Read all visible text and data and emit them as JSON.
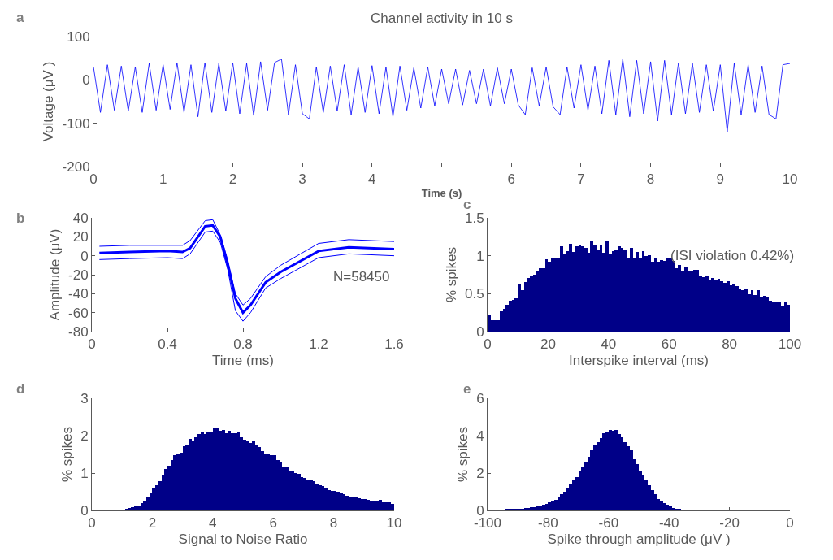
{
  "chart_data": [
    {
      "type": "line",
      "title": "Channel activity in 10 s",
      "xlabel": "Time (s)",
      "ylabel": "Voltage (μV )",
      "annotations": [
        "a"
      ],
      "color": "#0000ff",
      "x": [
        0,
        0.1,
        0.2,
        0.3,
        0.4,
        0.5,
        0.6,
        0.7,
        0.8,
        0.9,
        1,
        1.1,
        1.2,
        1.3,
        1.4,
        1.5,
        1.6,
        1.7,
        1.8,
        1.9,
        2,
        2.1,
        2.2,
        2.3,
        2.4,
        2.5,
        2.6,
        2.7,
        2.8,
        2.9,
        3,
        3.1,
        3.2,
        3.3,
        3.4,
        3.5,
        3.6,
        3.7,
        3.8,
        3.9,
        4,
        4.1,
        4.2,
        4.3,
        4.4,
        4.5,
        4.6,
        4.7,
        4.8,
        4.9,
        5,
        5.1,
        5.2,
        5.3,
        5.4,
        5.5,
        5.6,
        5.7,
        5.8,
        5.9,
        6,
        6.1,
        6.2,
        6.3,
        6.4,
        6.5,
        6.6,
        6.7,
        6.8,
        6.9,
        7,
        7.1,
        7.2,
        7.3,
        7.4,
        7.5,
        7.6,
        7.7,
        7.8,
        7.9,
        8,
        8.1,
        8.2,
        8.3,
        8.4,
        8.5,
        8.6,
        8.7,
        8.8,
        8.9,
        9,
        9.1,
        9.2,
        9.3,
        9.4,
        9.5,
        9.6,
        9.7,
        9.8,
        9.9,
        10
      ],
      "values": [
        30,
        -75,
        35,
        -70,
        32,
        -72,
        30,
        -75,
        38,
        -70,
        35,
        -68,
        40,
        -75,
        35,
        -85,
        40,
        -75,
        38,
        -72,
        40,
        -78,
        38,
        -82,
        42,
        -70,
        40,
        48,
        -80,
        35,
        -78,
        -90,
        30,
        -75,
        32,
        -72,
        35,
        -80,
        30,
        -75,
        33,
        -78,
        30,
        -85,
        32,
        -70,
        28,
        -65,
        30,
        -60,
        25,
        -55,
        25,
        -58,
        22,
        -55,
        25,
        -60,
        28,
        -55,
        25,
        -58,
        -80,
        28,
        -60,
        30,
        -62,
        -80,
        30,
        -65,
        35,
        -70,
        32,
        -78,
        45,
        -80,
        48,
        -85,
        45,
        -78,
        42,
        -95,
        45,
        -80,
        40,
        -78,
        38,
        -75,
        35,
        -72,
        35,
        -120,
        38,
        -80,
        35,
        -75,
        32,
        -80,
        -90,
        35,
        38
      ],
      "xlim": [
        0,
        10
      ],
      "xticks": [
        0,
        1,
        2,
        3,
        4,
        {
          "value": 5,
          "label": null
        },
        6,
        7,
        8,
        9,
        10
      ],
      "ylim": [
        -200,
        100
      ],
      "yticks": [
        -200,
        -100,
        0,
        100
      ]
    },
    {
      "type": "line",
      "xlabel": "Time (ms)",
      "ylabel": "Amplitude (μV)",
      "annotations": [
        "b",
        "N=58450"
      ],
      "x": [
        0.04,
        0.2,
        0.4,
        0.48,
        0.52,
        0.6,
        0.64,
        0.68,
        0.72,
        0.76,
        0.8,
        0.84,
        0.92,
        1.0,
        1.2,
        1.36,
        1.6
      ],
      "series": [
        {
          "color": "#0000ff",
          "values": [
            3,
            4,
            5,
            4,
            8,
            31,
            32,
            20,
            -10,
            -45,
            -60,
            -52,
            -28,
            -17,
            5,
            9,
            7
          ]
        },
        {
          "color": "#0000ff",
          "values": [
            10,
            11,
            11,
            11,
            16,
            37,
            38,
            22,
            -5,
            -40,
            -52,
            -45,
            -22,
            -10,
            13,
            17,
            15
          ]
        },
        {
          "color": "#0000ff",
          "values": [
            -4,
            -3,
            -2,
            -3,
            2,
            25,
            26,
            14,
            -15,
            -58,
            -69,
            -60,
            -34,
            -24,
            -2,
            2,
            0
          ]
        }
      ],
      "xlim": [
        0,
        1.6
      ],
      "xticks": [
        0,
        0.4,
        0.8,
        1.2,
        1.6
      ],
      "ylim": [
        -80,
        40
      ],
      "yticks": [
        -80,
        -60,
        -40,
        -20,
        0,
        20,
        40
      ]
    },
    {
      "type": "histogram",
      "xlabel": "Interspike interval (ms)",
      "ylabel": "% spikes",
      "annotations": [
        "c",
        "(ISI violation 0.42%)"
      ],
      "color": "#000088",
      "bins": [
        0,
        1,
        2,
        3,
        4,
        5,
        6,
        7,
        8,
        9,
        10,
        11,
        12,
        13,
        14,
        15,
        16,
        17,
        18,
        19,
        20,
        21,
        22,
        23,
        24,
        25,
        26,
        27,
        28,
        29,
        30,
        31,
        32,
        33,
        34,
        35,
        36,
        37,
        38,
        39,
        40,
        41,
        42,
        43,
        44,
        45,
        46,
        47,
        48,
        49,
        50,
        51,
        52,
        53,
        54,
        55,
        56,
        57,
        58,
        59,
        60,
        61,
        62,
        63,
        64,
        65,
        66,
        67,
        68,
        69,
        70,
        71,
        72,
        73,
        74,
        75,
        76,
        77,
        78,
        79,
        80,
        81,
        82,
        83,
        84,
        85,
        86,
        87,
        88,
        89,
        90,
        91,
        92,
        93,
        94,
        95,
        96,
        97,
        98,
        99,
        100
      ],
      "values": [
        0.23,
        0.15,
        0.15,
        0.15,
        0.27,
        0.3,
        0.35,
        0.41,
        0.42,
        0.44,
        0.63,
        0.55,
        0.65,
        0.71,
        0.73,
        0.75,
        0.8,
        0.84,
        0.84,
        0.95,
        0.92,
        0.98,
        0.97,
        0.97,
        1.13,
        1.02,
        1.06,
        1.16,
        1.05,
        1.12,
        1.15,
        1.13,
        1.1,
        1.04,
        1.19,
        1.15,
        1.08,
        1.14,
        1.04,
        1.2,
        1.02,
        1.06,
        1.08,
        1.13,
        1.1,
        1.07,
        0.97,
        1.1,
        0.97,
        1.05,
        0.96,
        1.06,
        1.0,
        1.01,
        0.92,
        0.98,
        0.92,
        0.94,
        0.93,
        0.97,
        0.98,
        0.93,
        0.84,
        0.88,
        0.8,
        0.85,
        0.79,
        0.8,
        0.81,
        0.81,
        0.74,
        0.72,
        0.73,
        0.69,
        0.71,
        0.68,
        0.7,
        0.66,
        0.64,
        0.66,
        0.61,
        0.62,
        0.6,
        0.56,
        0.55,
        0.56,
        0.49,
        0.55,
        0.48,
        0.55,
        0.46,
        0.47,
        0.46,
        0.41,
        0.4,
        0.4,
        0.39,
        0.34,
        0.39,
        0.35
      ],
      "xlim": [
        0,
        100
      ],
      "xticks": [
        0,
        20,
        40,
        60,
        80,
        100
      ],
      "ylim": [
        0,
        1.5
      ],
      "yticks": [
        0,
        0.5,
        1,
        1.5
      ]
    },
    {
      "type": "histogram",
      "xlabel": "Signal to Noise Ratio",
      "ylabel": "% spikes",
      "annotations": [
        "d"
      ],
      "color": "#000088",
      "bins": [
        0,
        0.1,
        0.2,
        0.3,
        0.4,
        0.5,
        0.6,
        0.7,
        0.8,
        0.9,
        1,
        1.1,
        1.2,
        1.3,
        1.4,
        1.5,
        1.6,
        1.7,
        1.8,
        1.9,
        2,
        2.1,
        2.2,
        2.3,
        2.4,
        2.5,
        2.6,
        2.7,
        2.8,
        2.9,
        3,
        3.1,
        3.2,
        3.3,
        3.4,
        3.5,
        3.6,
        3.7,
        3.8,
        3.9,
        4,
        4.1,
        4.2,
        4.3,
        4.4,
        4.5,
        4.6,
        4.7,
        4.8,
        4.9,
        5,
        5.1,
        5.2,
        5.3,
        5.4,
        5.5,
        5.6,
        5.7,
        5.8,
        5.9,
        6,
        6.1,
        6.2,
        6.3,
        6.4,
        6.5,
        6.6,
        6.7,
        6.8,
        6.9,
        7,
        7.1,
        7.2,
        7.3,
        7.4,
        7.5,
        7.6,
        7.7,
        7.8,
        7.9,
        8,
        8.1,
        8.2,
        8.3,
        8.4,
        8.5,
        8.6,
        8.7,
        8.8,
        8.9,
        9,
        9.1,
        9.2,
        9.3,
        9.4,
        9.5,
        9.6,
        9.7,
        9.8,
        9.9,
        10
      ],
      "values": [
        0,
        0,
        0,
        0,
        0,
        0,
        0,
        0,
        0,
        0,
        0.01,
        0.03,
        0.06,
        0.08,
        0.1,
        0.14,
        0.2,
        0.27,
        0.36,
        0.47,
        0.6,
        0.68,
        0.78,
        0.95,
        1.1,
        1.2,
        1.35,
        1.48,
        1.5,
        1.55,
        1.72,
        1.75,
        1.92,
        1.88,
        1.95,
        2.05,
        2.1,
        2.05,
        2.08,
        2.1,
        2.22,
        2.2,
        2.12,
        2.15,
        2.07,
        2.12,
        2.06,
        2.07,
        2.08,
        1.95,
        1.9,
        1.85,
        1.8,
        1.86,
        1.75,
        1.7,
        1.58,
        1.52,
        1.5,
        1.47,
        1.48,
        1.35,
        1.3,
        1.18,
        1.15,
        1.07,
        1.05,
        1.0,
        0.97,
        0.9,
        0.88,
        0.83,
        0.82,
        0.78,
        0.7,
        0.68,
        0.65,
        0.6,
        0.55,
        0.53,
        0.52,
        0.5,
        0.47,
        0.43,
        0.4,
        0.36,
        0.38,
        0.34,
        0.32,
        0.31,
        0.3,
        0.28,
        0.27,
        0.27,
        0.26,
        0.28,
        0.22,
        0.22,
        0.21,
        0.18
      ],
      "xlim": [
        0,
        10
      ],
      "xticks": [
        0,
        2,
        4,
        6,
        8,
        10
      ],
      "ylim": [
        0,
        3
      ],
      "yticks": [
        0,
        1,
        2,
        3
      ]
    },
    {
      "type": "histogram",
      "xlabel": "Spike through amplitude (μV )",
      "ylabel": "% spikes",
      "annotations": [
        "e"
      ],
      "color": "#000088",
      "bins": [
        -100,
        -99,
        -98,
        -97,
        -96,
        -95,
        -94,
        -93,
        -92,
        -91,
        -90,
        -89,
        -88,
        -87,
        -86,
        -85,
        -84,
        -83,
        -82,
        -81,
        -80,
        -79,
        -78,
        -77,
        -76,
        -75,
        -74,
        -73,
        -72,
        -71,
        -70,
        -69,
        -68,
        -67,
        -66,
        -65,
        -64,
        -63,
        -62,
        -61,
        -60,
        -59,
        -58,
        -57,
        -56,
        -55,
        -54,
        -53,
        -52,
        -51,
        -50,
        -49,
        -48,
        -47,
        -46,
        -45,
        -44,
        -43,
        -42,
        -41,
        -40,
        -39,
        -38,
        -37,
        -36,
        -35,
        -34
      ],
      "values": [
        0.02,
        0.02,
        0.03,
        0.03,
        0.03,
        0.04,
        0.05,
        0.05,
        0.06,
        0.07,
        0.08,
        0.1,
        0.12,
        0.14,
        0.16,
        0.18,
        0.2,
        0.26,
        0.3,
        0.35,
        0.42,
        0.48,
        0.58,
        0.7,
        0.85,
        1.0,
        1.2,
        1.4,
        1.6,
        1.8,
        2.1,
        2.3,
        2.6,
        2.85,
        3.2,
        3.5,
        3.65,
        3.85,
        4.15,
        4.2,
        4.32,
        4.28,
        4.3,
        4.1,
        3.9,
        3.65,
        3.45,
        3.2,
        2.75,
        2.5,
        2.15,
        1.9,
        1.6,
        1.35,
        1.1,
        0.85,
        0.6,
        0.48,
        0.4,
        0.3,
        0.22,
        0.15,
        0.1,
        0.06,
        0.03,
        0.01
      ],
      "xlim": [
        -100,
        0
      ],
      "xticks": [
        -100,
        -80,
        -60,
        -40,
        -20,
        0
      ],
      "ylim": [
        0,
        6
      ],
      "yticks": [
        0,
        2,
        4,
        6
      ]
    }
  ]
}
